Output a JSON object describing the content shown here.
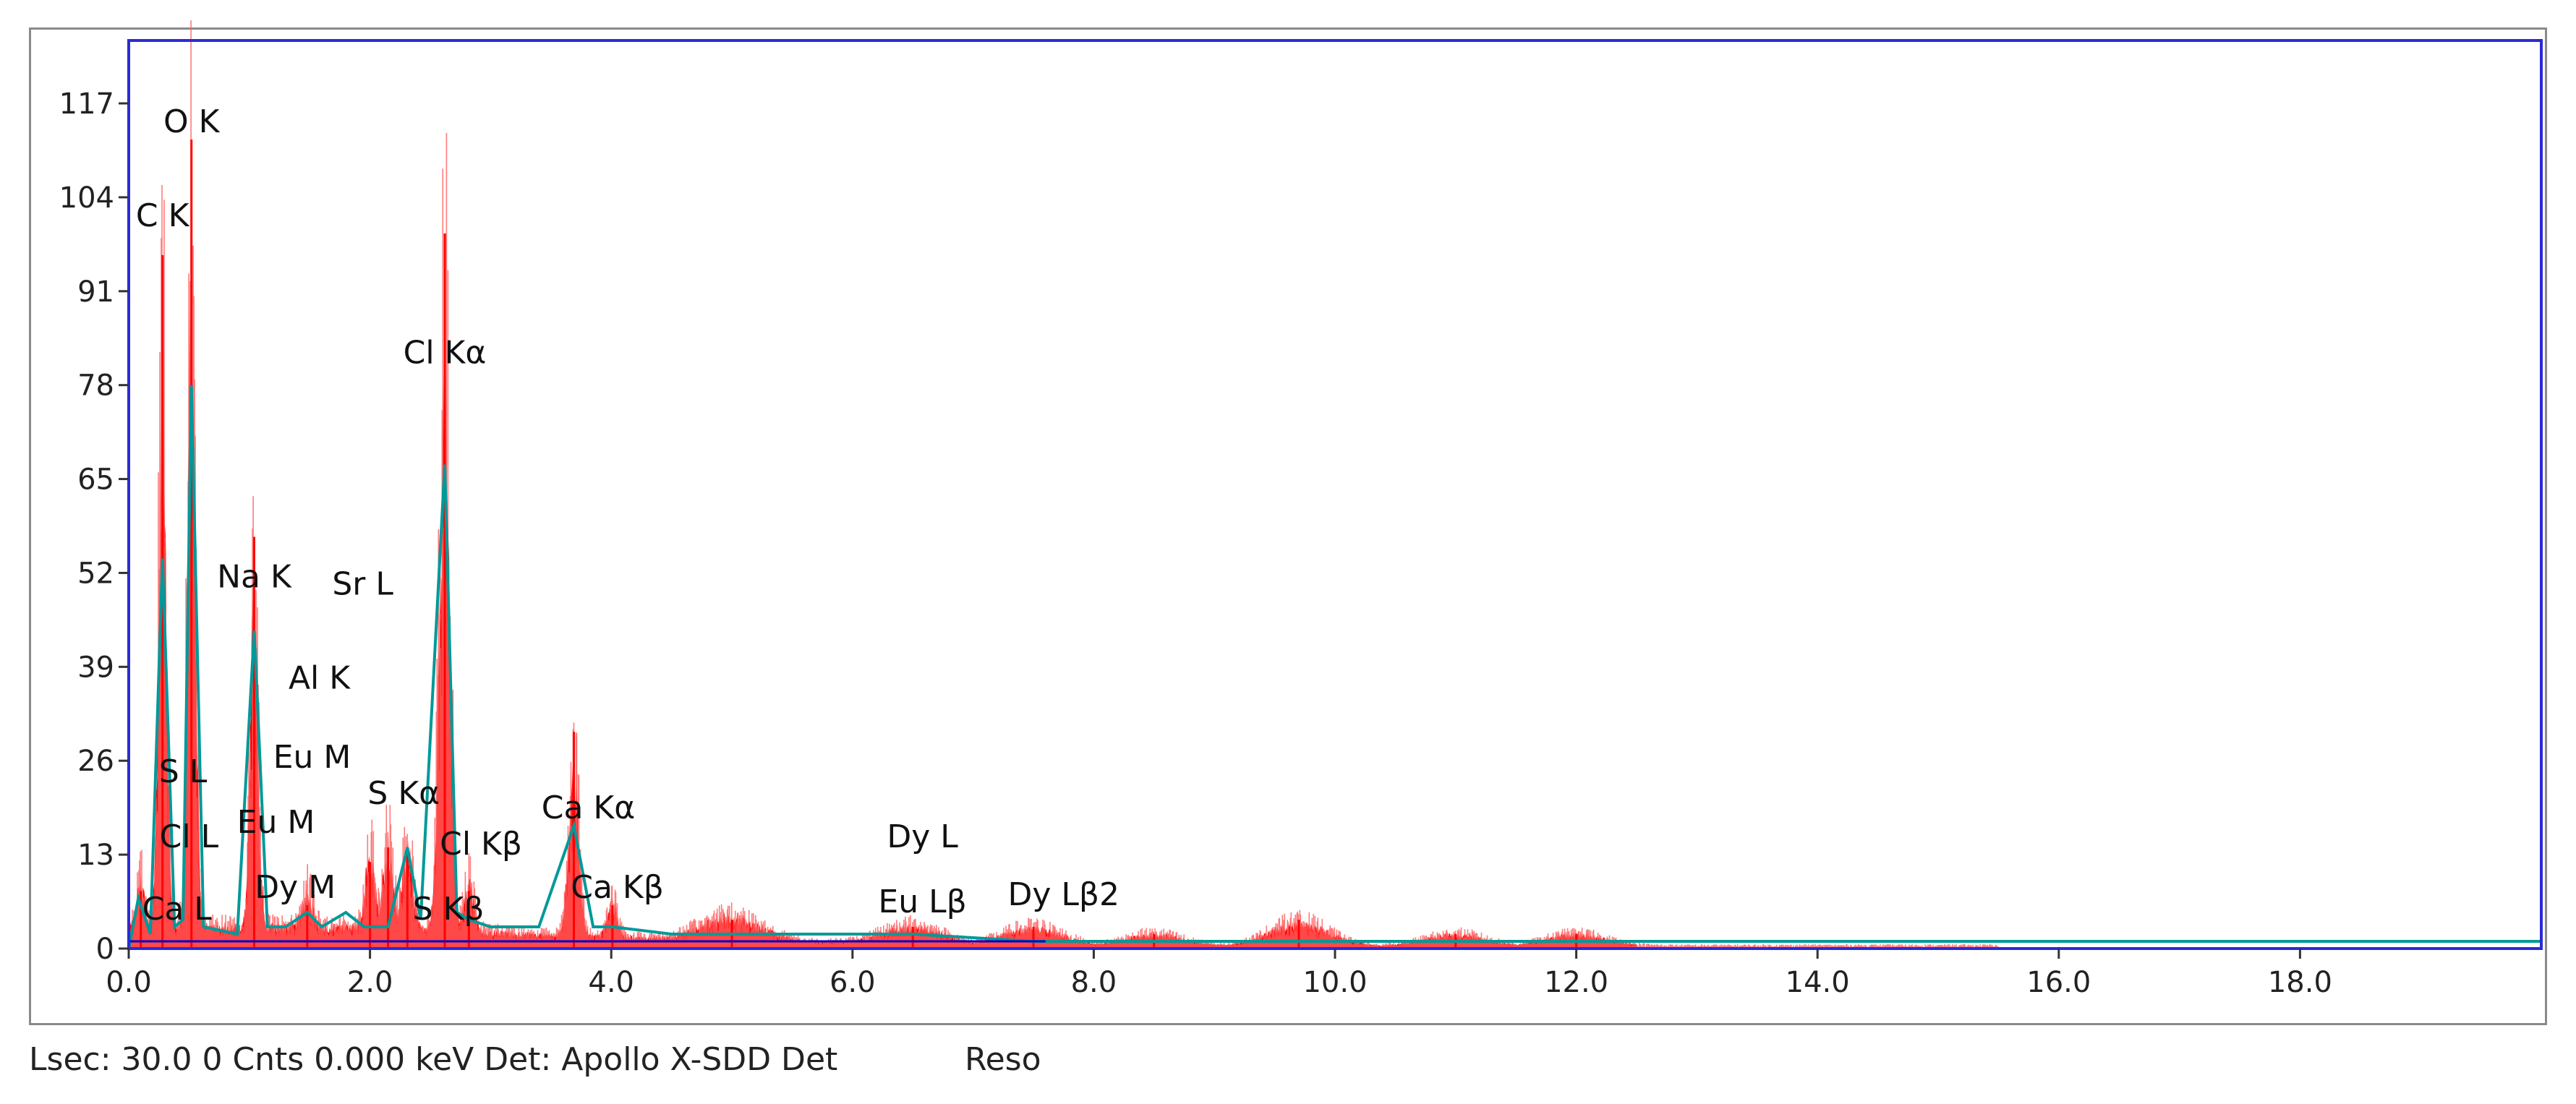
{
  "status": {
    "text": "Lsec: 30.0 0 Cnts  0.000 keV Det: Apollo X-SDD Det",
    "reso": "Reso"
  },
  "colors": {
    "frame": "#2b2bd6",
    "spectrum": "#ff0000",
    "overlay": "#009999",
    "background": "#0000cc"
  },
  "chart_data": {
    "type": "area",
    "title": "",
    "xlabel": "",
    "ylabel": "",
    "xlim": [
      0,
      20.0
    ],
    "ylim": [
      0,
      117
    ],
    "x_unit": "keV",
    "grid": false,
    "x_ticks": [
      0.0,
      2.0,
      4.0,
      6.0,
      8.0,
      10.0,
      12.0,
      14.0,
      16.0,
      18.0
    ],
    "x_tick_labels": [
      "0.0",
      "2.0",
      "4.0",
      "6.0",
      "8.0",
      "10.0",
      "12.0",
      "14.0",
      "16.0",
      "18.0"
    ],
    "y_ticks": [
      0,
      13,
      26,
      39,
      52,
      65,
      78,
      91,
      104,
      117
    ],
    "y_tick_labels": [
      "0",
      "13",
      "26",
      "39",
      "52",
      "65",
      "78",
      "91",
      "104",
      "117"
    ],
    "series": [
      {
        "color": "#ff0000",
        "peaks": [
          {
            "x": 0.1,
            "y": 8
          },
          {
            "x": 0.28,
            "y": 96
          },
          {
            "x": 0.52,
            "y": 112
          },
          {
            "x": 1.04,
            "y": 57
          },
          {
            "x": 1.48,
            "y": 6
          },
          {
            "x": 2.0,
            "y": 12
          },
          {
            "x": 2.15,
            "y": 14
          },
          {
            "x": 2.31,
            "y": 14
          },
          {
            "x": 2.62,
            "y": 99
          },
          {
            "x": 2.82,
            "y": 8
          },
          {
            "x": 3.69,
            "y": 30
          },
          {
            "x": 4.01,
            "y": 6
          },
          {
            "x": 5.0,
            "y": 4
          },
          {
            "x": 6.5,
            "y": 3
          },
          {
            "x": 7.5,
            "y": 3
          },
          {
            "x": 8.5,
            "y": 2
          },
          {
            "x": 9.7,
            "y": 4
          },
          {
            "x": 11.0,
            "y": 2
          },
          {
            "x": 12.0,
            "y": 2
          }
        ]
      },
      {
        "color": "#009999",
        "points": [
          [
            0.0,
            0
          ],
          [
            0.08,
            7
          ],
          [
            0.18,
            2
          ],
          [
            0.28,
            54
          ],
          [
            0.38,
            3
          ],
          [
            0.45,
            4
          ],
          [
            0.52,
            78
          ],
          [
            0.62,
            3
          ],
          [
            0.9,
            2
          ],
          [
            1.04,
            44
          ],
          [
            1.15,
            3
          ],
          [
            1.3,
            3
          ],
          [
            1.48,
            5
          ],
          [
            1.6,
            3
          ],
          [
            1.8,
            5
          ],
          [
            1.95,
            3
          ],
          [
            2.15,
            3
          ],
          [
            2.31,
            14
          ],
          [
            2.42,
            4
          ],
          [
            2.62,
            67
          ],
          [
            2.72,
            5
          ],
          [
            2.82,
            4
          ],
          [
            3.0,
            3
          ],
          [
            3.4,
            3
          ],
          [
            3.69,
            17
          ],
          [
            3.85,
            3
          ],
          [
            4.01,
            3
          ],
          [
            4.5,
            2
          ],
          [
            5.0,
            2
          ],
          [
            5.9,
            2
          ],
          [
            6.5,
            2
          ],
          [
            7.5,
            1
          ],
          [
            8.0,
            1
          ],
          [
            10.0,
            1
          ],
          [
            14.0,
            1
          ],
          [
            18.0,
            1
          ],
          [
            20.0,
            1
          ]
        ]
      }
    ],
    "peak_labels": [
      {
        "text": "O  K",
        "x": 0.52,
        "y": 113
      },
      {
        "text": "C  K",
        "x": 0.28,
        "y": 100
      },
      {
        "text": "Cl Kα",
        "x": 2.62,
        "y": 81
      },
      {
        "text": "Na K",
        "x": 1.04,
        "y": 50
      },
      {
        "text": "Sr L",
        "x": 1.94,
        "y": 49
      },
      {
        "text": "Al K",
        "x": 1.58,
        "y": 36
      },
      {
        "text": "Eu M",
        "x": 1.52,
        "y": 25
      },
      {
        "text": "S  L",
        "x": 0.45,
        "y": 23
      },
      {
        "text": "S  Kα",
        "x": 2.28,
        "y": 20
      },
      {
        "text": "Ca Kα",
        "x": 3.81,
        "y": 18
      },
      {
        "text": "Eu M",
        "x": 1.22,
        "y": 16
      },
      {
        "text": "Cl L",
        "x": 0.5,
        "y": 14
      },
      {
        "text": "Cl Kβ",
        "x": 2.92,
        "y": 13
      },
      {
        "text": "Dy L",
        "x": 6.58,
        "y": 14
      },
      {
        "text": "Ca Kβ",
        "x": 4.05,
        "y": 7
      },
      {
        "text": "Dy M",
        "x": 1.38,
        "y": 7
      },
      {
        "text": "Eu Lβ",
        "x": 6.58,
        "y": 5
      },
      {
        "text": "Dy Lβ2",
        "x": 7.75,
        "y": 6
      },
      {
        "text": "S  Kβ",
        "x": 2.65,
        "y": 4
      },
      {
        "text": "Ca L",
        "x": 0.4,
        "y": 4
      }
    ]
  }
}
